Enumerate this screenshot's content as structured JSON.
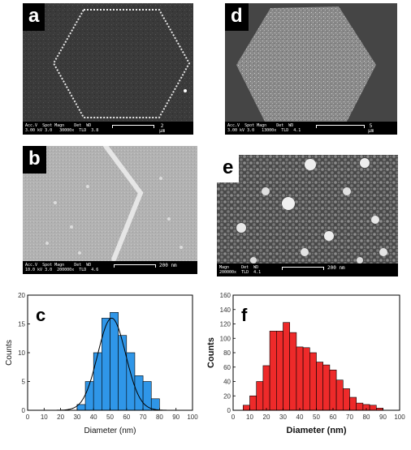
{
  "colors": {
    "hist_c": "#2f96e8",
    "hist_f": "#ee2a2a",
    "fit_curve": "#000000",
    "sem_bg": "#3c3c3c"
  },
  "panels": {
    "a": {
      "label": "a",
      "acq_header": "Acc.V  Spot Magn    Det  WD",
      "acq_values": "3.00 kV 3.0   30000x  TLD  3.8",
      "scalebar": "2 µm"
    },
    "b": {
      "label": "b",
      "acq_header": "Acc.V  Spot Magn    Det  WD",
      "acq_values": "10.0 kV 3.0  200000x  TLD  4.6",
      "scalebar": "200 nm"
    },
    "d": {
      "label": "d",
      "acq_header": "Acc.V  Spot Magn    Det  WD",
      "acq_values": "3.00 kV 3.0   13000x  TLD  4.1",
      "scalebar": "5 µm"
    },
    "e": {
      "label": "e",
      "acq_header": "Magn     Det  WD",
      "acq_values": "200000x  TLD  4.1",
      "scalebar": "200 nm"
    }
  },
  "chart_data": [
    {
      "panel": "c",
      "label": "c",
      "type": "bar",
      "xlabel": "Diameter (nm)",
      "ylabel": "Counts",
      "xlim": [
        0,
        100
      ],
      "ylim": [
        0,
        20
      ],
      "xticks": [
        "0",
        "10",
        "20",
        "30",
        "40",
        "50",
        "60",
        "70",
        "80",
        "90",
        "100"
      ],
      "yticks": [
        "0",
        "5",
        "10",
        "15",
        "20"
      ],
      "bin_width": 5,
      "bins": [
        {
          "x0": 30,
          "count": 1
        },
        {
          "x0": 35,
          "count": 5
        },
        {
          "x0": 40,
          "count": 10
        },
        {
          "x0": 45,
          "count": 16
        },
        {
          "x0": 50,
          "count": 17
        },
        {
          "x0": 55,
          "count": 13
        },
        {
          "x0": 60,
          "count": 10
        },
        {
          "x0": 65,
          "count": 6
        },
        {
          "x0": 70,
          "count": 5
        },
        {
          "x0": 75,
          "count": 2
        }
      ],
      "fit": {
        "type": "gaussian",
        "center": 51,
        "sigma": 8.5,
        "amplitude": 16
      }
    },
    {
      "panel": "f",
      "label": "f",
      "type": "bar",
      "xlabel": "Diameter (nm)",
      "ylabel": "Counts",
      "xlim": [
        0,
        100
      ],
      "ylim": [
        0,
        160
      ],
      "xticks": [
        "0",
        "10",
        "20",
        "30",
        "40",
        "50",
        "60",
        "70",
        "80",
        "90",
        "100"
      ],
      "yticks": [
        "0",
        "20",
        "40",
        "60",
        "80",
        "100",
        "120",
        "140",
        "160"
      ],
      "bin_width": 4,
      "bins": [
        {
          "x0": 6,
          "count": 7
        },
        {
          "x0": 10,
          "count": 20
        },
        {
          "x0": 14,
          "count": 40
        },
        {
          "x0": 18,
          "count": 62
        },
        {
          "x0": 22,
          "count": 110
        },
        {
          "x0": 26,
          "count": 110
        },
        {
          "x0": 30,
          "count": 122
        },
        {
          "x0": 34,
          "count": 108
        },
        {
          "x0": 38,
          "count": 88
        },
        {
          "x0": 42,
          "count": 87
        },
        {
          "x0": 46,
          "count": 80
        },
        {
          "x0": 50,
          "count": 67
        },
        {
          "x0": 54,
          "count": 63
        },
        {
          "x0": 58,
          "count": 56
        },
        {
          "x0": 62,
          "count": 42
        },
        {
          "x0": 66,
          "count": 30
        },
        {
          "x0": 70,
          "count": 18
        },
        {
          "x0": 74,
          "count": 10
        },
        {
          "x0": 78,
          "count": 8
        },
        {
          "x0": 82,
          "count": 7
        },
        {
          "x0": 86,
          "count": 3
        }
      ]
    }
  ]
}
